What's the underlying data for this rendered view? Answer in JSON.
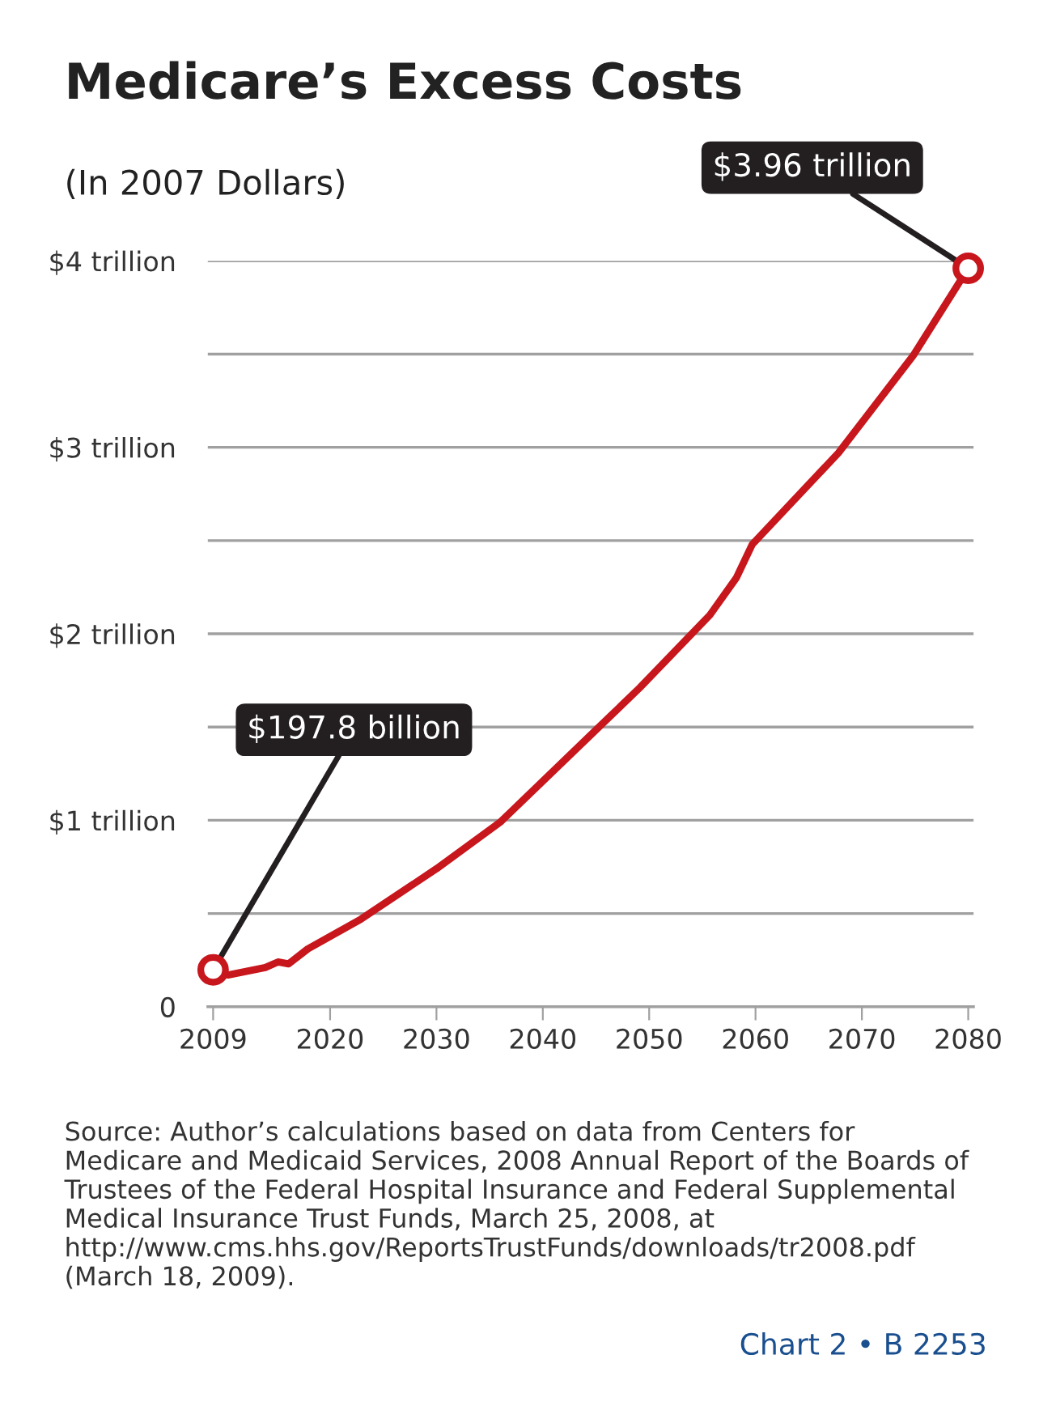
{
  "chart_data": {
    "type": "line",
    "title": "Medicare’s Excess Costs",
    "subtitle": "(In 2007 Dollars)",
    "x": [
      2009,
      2010.4,
      2013.9,
      2015.1,
      2016.1,
      2017.9,
      2022.9,
      2030,
      2036,
      2045.1,
      2049.1,
      2055.7,
      2058.2,
      2059.7,
      2067.8,
      2074.8,
      2080
    ],
    "series": [
      {
        "color": "#c8161d",
        "values": [
          0.1978,
          0.17,
          0.21,
          0.24,
          0.23,
          0.31,
          0.47,
          0.74,
          0.99,
          1.49,
          1.71,
          2.1,
          2.3,
          2.48,
          2.97,
          3.49,
          3.96
        ]
      }
    ],
    "xlim": [
      2008.5,
      2080.5
    ],
    "xticks": [
      2009,
      2020,
      2030,
      2040,
      2050,
      2060,
      2070,
      2080
    ],
    "ylim": [
      0,
      4
    ],
    "yticks": [
      0,
      {
        "value": 0.5,
        "label": null
      },
      {
        "value": 1,
        "label": "$1 trillion"
      },
      {
        "value": 1.5,
        "label": null
      },
      {
        "value": 2,
        "label": "$2 trillion"
      },
      {
        "value": 2.5,
        "label": null
      },
      {
        "value": 3,
        "label": "$3 trillion"
      },
      {
        "value": 3.5,
        "label": null
      },
      {
        "value": 4,
        "label": "$4 trillion"
      }
    ],
    "grid": "y",
    "annotations": [
      {
        "text": "$197.8 billion",
        "x": 2009,
        "y": 0.1978
      },
      {
        "text": "$3.96 trillion",
        "x": 2080,
        "y": 3.96
      },
      "Source: Author’s calculations based on data from Centers for Medicare and Medicaid Services, 2008 Annual Report of the Boards of Trustees of the Federal Hospital Insurance and Federal Supplemental Medical Insurance Trust Funds, March 25, 2008, at http://www.cms.hhs.gov/ReportsTrustFunds/downloads/tr2008.pdf (March 18, 2009).",
      "Chart 2 • B 2253"
    ]
  }
}
